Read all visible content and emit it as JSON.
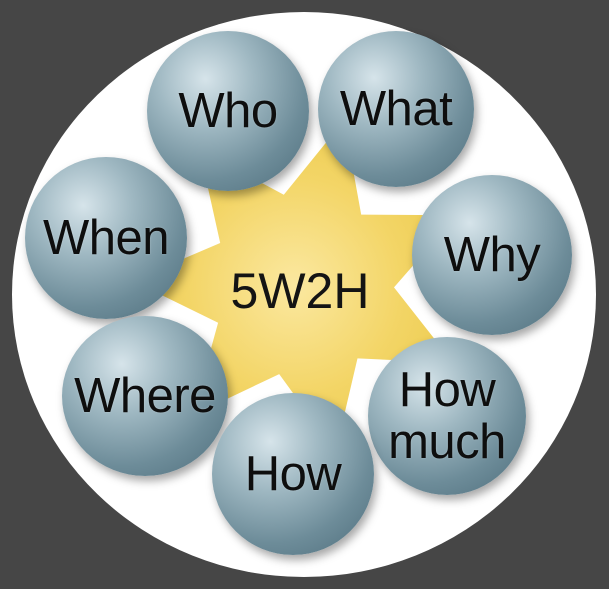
{
  "diagram": {
    "center_label": "5W2H",
    "items": [
      {
        "id": "who",
        "label": "Who"
      },
      {
        "id": "what",
        "label": "What"
      },
      {
        "id": "when",
        "label": "When"
      },
      {
        "id": "why",
        "label": "Why"
      },
      {
        "id": "where",
        "label": "Where"
      },
      {
        "id": "how_much",
        "lines": [
          "How",
          "much"
        ]
      },
      {
        "id": "how",
        "label": "How"
      }
    ]
  },
  "colors": {
    "background": "#464646",
    "disc": "#ffffff",
    "star": "#f3d566",
    "ball": "#7f9ba7",
    "text": "#141414"
  }
}
